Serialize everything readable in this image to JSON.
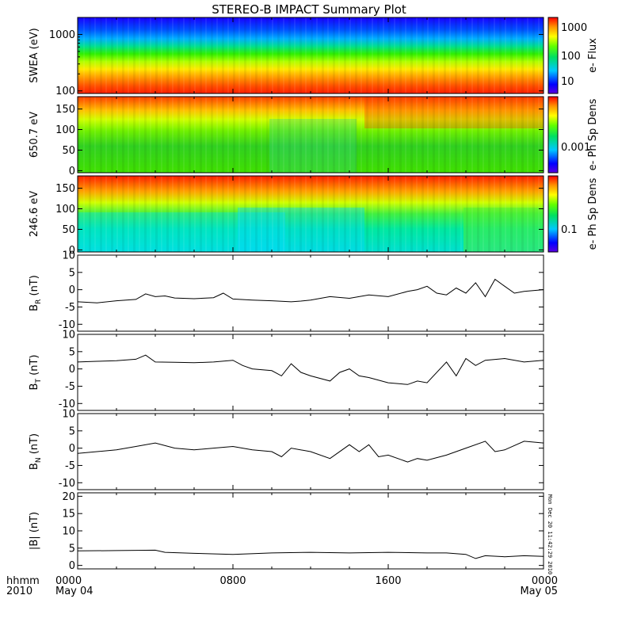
{
  "title": "STEREO-B IMPACT Summary Plot",
  "time_axis": {
    "row1_label": "hhmm",
    "row2_label": "2010",
    "ticks": [
      {
        "hhmm": "0000",
        "date": "May 04",
        "hours": 0
      },
      {
        "hhmm": "0800",
        "date": "",
        "hours": 8
      },
      {
        "hhmm": "1600",
        "date": "",
        "hours": 16
      },
      {
        "hhmm": "0000",
        "date": "May 05",
        "hours": 24
      }
    ],
    "range_hours": [
      0,
      24
    ]
  },
  "footer_stamp": "Mon Dec 20 11:42:29 2010",
  "chart_data": [
    {
      "type": "heatmap",
      "ylabel": "SWEA (eV)",
      "yscale": "log",
      "ylim": [
        90,
        2000
      ],
      "yticks": [
        {
          "v": 100,
          "t": "100"
        },
        {
          "v": 1000,
          "t": "1000"
        }
      ],
      "colorbar_label": "e- Flux",
      "colorbar_ticks": [
        "1000",
        "100",
        "10"
      ],
      "colormap": "rainbow"
    },
    {
      "type": "heatmap",
      "ylabel": "650.7 eV",
      "ylim": [
        -5,
        180
      ],
      "yticks": [
        {
          "v": 0,
          "t": "0"
        },
        {
          "v": 50,
          "t": "50"
        },
        {
          "v": 100,
          "t": "100"
        },
        {
          "v": 150,
          "t": "150"
        }
      ],
      "colorbar_label": "e- Ph Sp Dens",
      "colorbar_ticks": [
        "0.001"
      ],
      "colormap": "rainbow"
    },
    {
      "type": "heatmap",
      "ylabel": "246.6 eV",
      "ylim": [
        -5,
        180
      ],
      "yticks": [
        {
          "v": 0,
          "t": "0"
        },
        {
          "v": 50,
          "t": "50"
        },
        {
          "v": 100,
          "t": "100"
        },
        {
          "v": 150,
          "t": "150"
        }
      ],
      "colorbar_label": "e- Ph Sp Dens",
      "colorbar_ticks": [
        "0.1"
      ],
      "colormap": "rainbow"
    },
    {
      "type": "line",
      "ylabel_main": "B",
      "ylabel_sub": "R",
      "ylabel_unit": " (nT)",
      "ylim": [
        -12,
        10
      ],
      "yticks": [
        -10,
        -5,
        0,
        5,
        10
      ],
      "x": [
        0,
        1,
        2,
        3,
        3.5,
        4,
        4.5,
        5,
        6,
        7,
        7.5,
        8,
        9,
        10,
        11,
        11.5,
        12,
        13,
        14,
        15,
        16,
        17,
        17.5,
        18,
        18.5,
        19,
        19.5,
        20,
        20.5,
        21,
        21.5,
        22,
        22.5,
        23,
        24
      ],
      "y": [
        -3.5,
        -3.8,
        -3.2,
        -2.8,
        -1.2,
        -2,
        -1.8,
        -2.4,
        -2.6,
        -2.3,
        -1,
        -2.7,
        -3,
        -3.2,
        -3.5,
        -3.3,
        -3,
        -2,
        -2.5,
        -1.5,
        -2,
        -0.5,
        0,
        1,
        -1,
        -1.5,
        0.5,
        -1,
        2,
        -2,
        3,
        1,
        -1,
        -0.5,
        0
      ]
    },
    {
      "type": "line",
      "ylabel_main": "B",
      "ylabel_sub": "T",
      "ylabel_unit": " (nT)",
      "ylim": [
        -12,
        10
      ],
      "yticks": [
        -10,
        -5,
        0,
        5,
        10
      ],
      "x": [
        0,
        1,
        2,
        3,
        3.5,
        4,
        5,
        6,
        7,
        8,
        8.5,
        9,
        10,
        10.5,
        11,
        11.5,
        12,
        13,
        13.5,
        14,
        14.5,
        15,
        16,
        17,
        17.5,
        18,
        19,
        19.5,
        20,
        20.5,
        21,
        22,
        23,
        24
      ],
      "y": [
        2,
        2.2,
        2.4,
        2.8,
        4,
        2,
        1.9,
        1.8,
        2,
        2.5,
        1,
        0,
        -0.5,
        -2,
        1.5,
        -1,
        -2,
        -3.5,
        -1,
        0,
        -2,
        -2.5,
        -4,
        -4.5,
        -3.5,
        -4,
        2,
        -2,
        3,
        1,
        2.5,
        3,
        2,
        2.5
      ]
    },
    {
      "type": "line",
      "ylabel_main": "B",
      "ylabel_sub": "N",
      "ylabel_unit": " (nT)",
      "ylim": [
        -12,
        10
      ],
      "yticks": [
        -10,
        -5,
        0,
        5,
        10
      ],
      "x": [
        0,
        1,
        2,
        3,
        4,
        5,
        6,
        7,
        8,
        9,
        10,
        10.5,
        11,
        12,
        13,
        14,
        14.5,
        15,
        15.5,
        16,
        17,
        17.5,
        18,
        19,
        20,
        21,
        21.5,
        22,
        23,
        24
      ],
      "y": [
        -1.5,
        -1,
        -0.5,
        0.5,
        1.5,
        0,
        -0.5,
        0,
        0.5,
        -0.5,
        -1,
        -2.5,
        0,
        -1,
        -3,
        1,
        -1,
        1,
        -2.5,
        -2,
        -4,
        -3,
        -3.5,
        -2,
        0,
        2,
        -1,
        -0.5,
        2,
        1.5
      ]
    },
    {
      "type": "line",
      "ylabel": "|B| (nT)",
      "ylim": [
        -1,
        21
      ],
      "yticks": [
        0,
        5,
        10,
        15,
        20
      ],
      "x": [
        0,
        2,
        4,
        4.5,
        6,
        8,
        10,
        12,
        14,
        16,
        18,
        19,
        20,
        20.5,
        21,
        22,
        23,
        24
      ],
      "y": [
        4.2,
        4.3,
        4.4,
        3.8,
        3.5,
        3.2,
        3.6,
        3.8,
        3.6,
        3.8,
        3.6,
        3.6,
        3.2,
        2,
        2.8,
        2.5,
        2.8,
        2.6
      ]
    }
  ]
}
